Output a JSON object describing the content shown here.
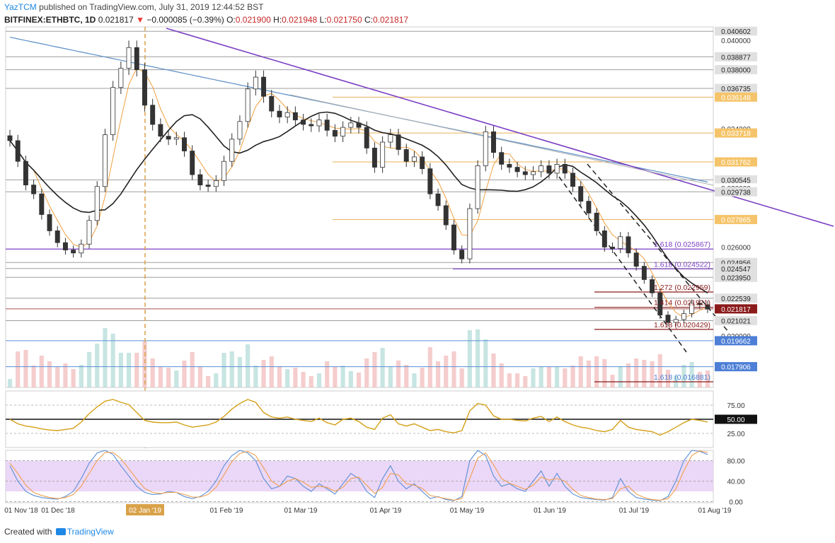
{
  "header": {
    "user": "YazTCM",
    "published": "published on TradingView.com, July 31, 2019 12:44:52 BST",
    "symbol": "BITFINEX:ETHBTC, 1D",
    "last": "0.021817",
    "arrow": "▼",
    "change": "−0.000085 (−0.39%)",
    "o_label": "O:",
    "o": "0.021900",
    "h_label": "H:",
    "h": "0.021948",
    "l_label": "L:",
    "l": "0.021750",
    "c_label": "C:",
    "c": "0.021817"
  },
  "footer": {
    "created": "Created with",
    "brand": "TradingView"
  },
  "colors": {
    "up": "#26a69a",
    "down": "#ef5350",
    "trend": "#7b3fc4",
    "ma200": "#5b8fc7",
    "ma100": "#222222",
    "ma20": "#f0a040",
    "fib": "#8b1a1a",
    "rsi": "#d4a017",
    "stoch_bg": "#e6cdf5"
  },
  "chart_data": [
    {
      "type": "candlestick",
      "name": "main",
      "ylim": [
        0.0165,
        0.0409
      ],
      "x_ticks": [
        "01 Nov '18",
        "01 Dec '18",
        "02 Jan '19",
        "01 Feb '19",
        "01 Mar '19",
        "01 Apr '19",
        "01 May '19",
        "01 Jun '19",
        "01 Jul '19",
        "01 Aug '19"
      ],
      "highlighted_x_tick": "02 Jan '19",
      "price_labels": [
        {
          "value": 0.040602,
          "text": "0.040602",
          "style": "box-gray"
        },
        {
          "value": 0.04,
          "text": "0.040000",
          "style": "plain"
        },
        {
          "value": 0.038877,
          "text": "0.038877",
          "style": "box-gray"
        },
        {
          "value": 0.038,
          "text": "0.038000",
          "style": "box-gray"
        },
        {
          "value": 0.036735,
          "text": "0.036735",
          "style": "box-gray"
        },
        {
          "value": 0.036148,
          "text": "0.036148",
          "style": "box-orange"
        },
        {
          "value": 0.034,
          "text": "0.034000",
          "style": "plain"
        },
        {
          "value": 0.033718,
          "text": "0.033718",
          "style": "box-orange"
        },
        {
          "value": 0.031762,
          "text": "0.031762",
          "style": "box-orange"
        },
        {
          "value": 0.030545,
          "text": "0.030545",
          "style": "box-gray"
        },
        {
          "value": 0.03,
          "text": "0.030000",
          "style": "plain"
        },
        {
          "value": 0.029738,
          "text": "0.029738",
          "style": "box-gray"
        },
        {
          "value": 0.027865,
          "text": "0.027865",
          "style": "box-orange"
        },
        {
          "value": 0.026,
          "text": "0.026000",
          "style": "plain"
        },
        {
          "value": 0.024956,
          "text": "0.024956",
          "style": "box-gray"
        },
        {
          "value": 0.024547,
          "text": "0.024547",
          "style": "box-gray"
        },
        {
          "value": 0.02395,
          "text": "0.023950",
          "style": "box-gray"
        },
        {
          "value": 0.022539,
          "text": "0.022539",
          "style": "box-gray"
        },
        {
          "value": 0.021817,
          "text": "0.021817",
          "style": "box-red"
        },
        {
          "value": 0.021021,
          "text": "0.021021",
          "style": "box-gray"
        },
        {
          "value": 0.02,
          "text": "0.020000",
          "style": "plain"
        },
        {
          "value": 0.019662,
          "text": "0.019662",
          "style": "box-blue"
        },
        {
          "value": 0.017906,
          "text": "0.017906",
          "style": "box-blue"
        }
      ],
      "fib_labels": [
        {
          "value": 0.025867,
          "text": "1.618 (0.025867)"
        },
        {
          "value": 0.024522,
          "text": "1.618 (0.024522)"
        },
        {
          "value": 0.022959,
          "text": "1.272 (0.022959)"
        },
        {
          "value": 0.021921,
          "text": "1.414 (0.021921)"
        },
        {
          "value": 0.020429,
          "text": "1.618 (0.020429)"
        },
        {
          "value": 0.016881,
          "text": "1.618 (0.016881)"
        }
      ],
      "closes": [
        0.0332,
        0.0318,
        0.0302,
        0.0296,
        0.0282,
        0.0271,
        0.0263,
        0.0258,
        0.0256,
        0.0262,
        0.0278,
        0.0301,
        0.0336,
        0.0368,
        0.0381,
        0.0395,
        0.038,
        0.0356,
        0.0343,
        0.0335,
        0.0333,
        0.0334,
        0.0325,
        0.0309,
        0.0302,
        0.0301,
        0.0305,
        0.0318,
        0.0333,
        0.0345,
        0.0367,
        0.0375,
        0.0362,
        0.0352,
        0.0348,
        0.0351,
        0.0346,
        0.0343,
        0.0342,
        0.0346,
        0.0339,
        0.0335,
        0.0341,
        0.0344,
        0.0341,
        0.0327,
        0.0314,
        0.0331,
        0.0336,
        0.0326,
        0.0318,
        0.0321,
        0.0313,
        0.0296,
        0.0288,
        0.0275,
        0.0258,
        0.0252,
        0.0286,
        0.0315,
        0.0338,
        0.0324,
        0.0316,
        0.0314,
        0.0311,
        0.0309,
        0.0311,
        0.0315,
        0.031,
        0.0316,
        0.031,
        0.0301,
        0.0291,
        0.0283,
        0.0271,
        0.026,
        0.0259,
        0.0267,
        0.0256,
        0.0247,
        0.0238,
        0.0229,
        0.0214,
        0.0209,
        0.0211,
        0.0215,
        0.0222,
        0.0221,
        0.0218
      ]
    },
    {
      "type": "line",
      "name": "rsi",
      "ylim": [
        0,
        100
      ],
      "y_ticks": [
        25,
        50,
        75
      ],
      "y_tick_labels": [
        "25.00",
        "50.00",
        "75.00"
      ],
      "label_value": "50.00",
      "values": [
        50,
        42,
        38,
        36,
        33,
        31,
        30,
        32,
        34,
        45,
        60,
        72,
        82,
        85,
        80,
        76,
        62,
        48,
        45,
        44,
        44,
        45,
        40,
        36,
        38,
        40,
        45,
        55,
        68,
        78,
        85,
        80,
        62,
        54,
        52,
        54,
        50,
        48,
        46,
        52,
        44,
        40,
        50,
        52,
        46,
        36,
        32,
        52,
        58,
        42,
        38,
        42,
        36,
        30,
        32,
        28,
        26,
        30,
        65,
        78,
        75,
        56,
        50,
        50,
        48,
        47,
        52,
        55,
        46,
        54,
        46,
        40,
        36,
        34,
        30,
        28,
        32,
        48,
        36,
        32,
        30,
        28,
        22,
        28,
        36,
        44,
        50,
        48,
        45
      ]
    },
    {
      "type": "line",
      "name": "stoch_rsi",
      "ylim": [
        -2,
        100
      ],
      "y_ticks": [
        0,
        40,
        80
      ],
      "y_tick_labels": [
        "0.00",
        "40.00",
        "80.00"
      ],
      "series": [
        {
          "values": [
            70,
            40,
            20,
            12,
            8,
            6,
            5,
            10,
            20,
            45,
            75,
            95,
            100,
            92,
            70,
            50,
            30,
            18,
            14,
            15,
            20,
            18,
            10,
            6,
            10,
            20,
            40,
            70,
            90,
            100,
            95,
            80,
            45,
            25,
            30,
            50,
            45,
            30,
            20,
            35,
            25,
            15,
            35,
            55,
            45,
            20,
            8,
            45,
            70,
            40,
            25,
            35,
            20,
            6,
            10,
            4,
            2,
            10,
            80,
            100,
            90,
            50,
            30,
            35,
            25,
            20,
            40,
            60,
            30,
            55,
            30,
            15,
            8,
            6,
            4,
            3,
            8,
            45,
            20,
            8,
            5,
            3,
            2,
            10,
            40,
            80,
            100,
            98,
            92
          ]
        },
        {
          "values": [
            75,
            55,
            32,
            18,
            12,
            8,
            6,
            8,
            14,
            30,
            55,
            80,
            96,
            96,
            84,
            64,
            44,
            26,
            18,
            16,
            18,
            18,
            14,
            9,
            9,
            14,
            28,
            52,
            78,
            94,
            98,
            90,
            66,
            40,
            30,
            40,
            45,
            38,
            28,
            30,
            28,
            20,
            28,
            45,
            48,
            32,
            16,
            28,
            55,
            52,
            35,
            32,
            26,
            12,
            9,
            6,
            3,
            6,
            45,
            85,
            95,
            72,
            45,
            36,
            30,
            24,
            32,
            48,
            42,
            45,
            40,
            24,
            12,
            8,
            5,
            4,
            6,
            25,
            30,
            15,
            8,
            4,
            3,
            6,
            25,
            60,
            90,
            99,
            96
          ]
        }
      ]
    }
  ]
}
